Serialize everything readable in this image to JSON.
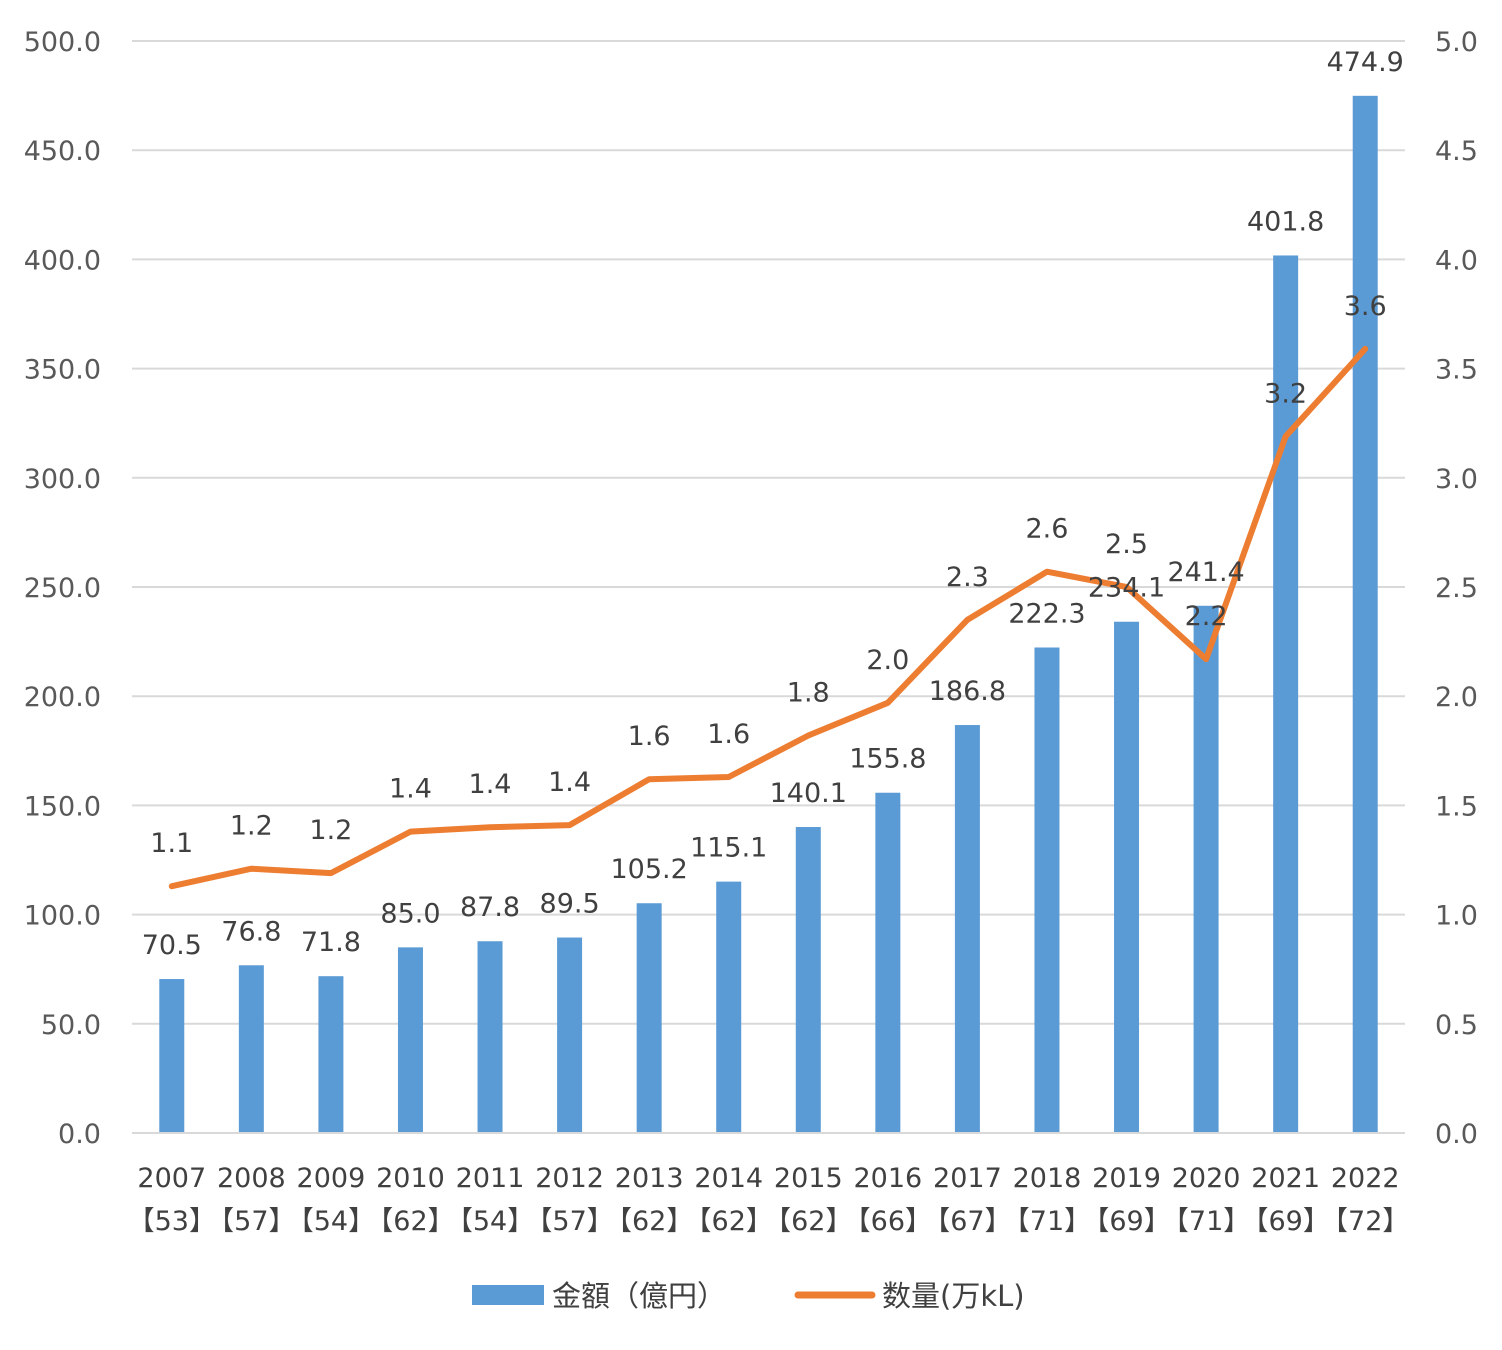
{
  "chart_data": {
    "type": "bar",
    "categories": [
      "2007",
      "2008",
      "2009",
      "2010",
      "2011",
      "2012",
      "2013",
      "2014",
      "2015",
      "2016",
      "2017",
      "2018",
      "2019",
      "2020",
      "2021",
      "2022"
    ],
    "category_sublabels": [
      "【53】",
      "【57】",
      "【54】",
      "【62】",
      "【54】",
      "【57】",
      "【62】",
      "【62】",
      "【62】",
      "【66】",
      "【67】",
      "【71】",
      "【69】",
      "【71】",
      "【69】",
      "【72】"
    ],
    "series": [
      {
        "name": "金額（億円）",
        "type": "bar",
        "axis": "left",
        "color": "#5B9BD5",
        "values": [
          70.5,
          76.8,
          71.8,
          85.0,
          87.8,
          89.5,
          105.2,
          115.1,
          140.1,
          155.8,
          186.8,
          222.3,
          234.1,
          241.4,
          401.8,
          474.9
        ],
        "labels": [
          "70.5",
          "76.8",
          "71.8",
          "85.0",
          "87.8",
          "89.5",
          "105.2",
          "115.1",
          "140.1",
          "155.8",
          "186.8",
          "222.3",
          "234.1",
          "241.4",
          "401.8",
          "474.9"
        ]
      },
      {
        "name": "数量(万kL)",
        "type": "line",
        "axis": "right",
        "color": "#ED7D31",
        "values": [
          1.13,
          1.21,
          1.19,
          1.38,
          1.4,
          1.41,
          1.62,
          1.63,
          1.82,
          1.97,
          2.35,
          2.57,
          2.5,
          2.17,
          3.19,
          3.59
        ],
        "labels": [
          "1.1",
          "1.2",
          "1.2",
          "1.4",
          "1.4",
          "1.4",
          "1.6",
          "1.6",
          "1.8",
          "2.0",
          "2.3",
          "2.6",
          "2.5",
          "2.2",
          "3.2",
          "3.6"
        ]
      }
    ],
    "y_left": {
      "ylim": [
        0,
        500
      ],
      "ticks": [
        "0.0",
        "50.0",
        "100.0",
        "150.0",
        "200.0",
        "250.0",
        "300.0",
        "350.0",
        "400.0",
        "450.0",
        "500.0"
      ]
    },
    "y_right": {
      "ylim": [
        0,
        5
      ],
      "ticks": [
        "0.0",
        "0.5",
        "1.0",
        "1.5",
        "2.0",
        "2.5",
        "3.0",
        "3.5",
        "4.0",
        "4.5",
        "5.0"
      ]
    },
    "grid": true,
    "legend_position": "bottom"
  }
}
